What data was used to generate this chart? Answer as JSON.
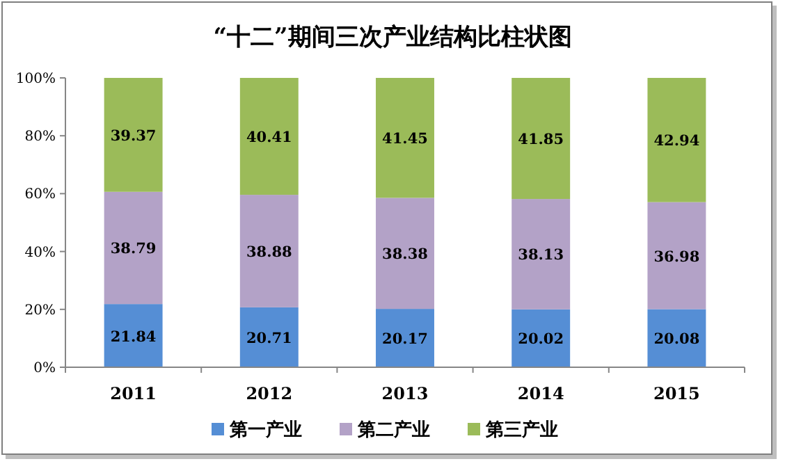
{
  "chart_data": {
    "type": "bar",
    "stacked": true,
    "title": "“十二”期间三次产业结构比柱状图",
    "categories": [
      "2011",
      "2012",
      "2013",
      "2014",
      "2015"
    ],
    "series": [
      {
        "name": "第一产业",
        "color": "#558ed5",
        "values": [
          21.84,
          20.71,
          20.17,
          20.02,
          20.08
        ]
      },
      {
        "name": "第二产业",
        "color": "#b3a2c7",
        "values": [
          38.79,
          38.88,
          38.38,
          38.13,
          36.98
        ]
      },
      {
        "name": "第三产业",
        "color": "#9bbb59",
        "values": [
          39.37,
          40.41,
          41.45,
          41.85,
          42.94
        ]
      }
    ],
    "ylim": [
      0,
      100
    ],
    "yticks": [
      {
        "value": 0,
        "label": "0%"
      },
      {
        "value": 20,
        "label": "20%"
      },
      {
        "value": 40,
        "label": "40%"
      },
      {
        "value": 60,
        "label": "60%"
      },
      {
        "value": 80,
        "label": "80%"
      },
      {
        "value": 100,
        "label": "100%"
      }
    ],
    "data_labels": true,
    "legend": "bottom",
    "grid": false
  }
}
